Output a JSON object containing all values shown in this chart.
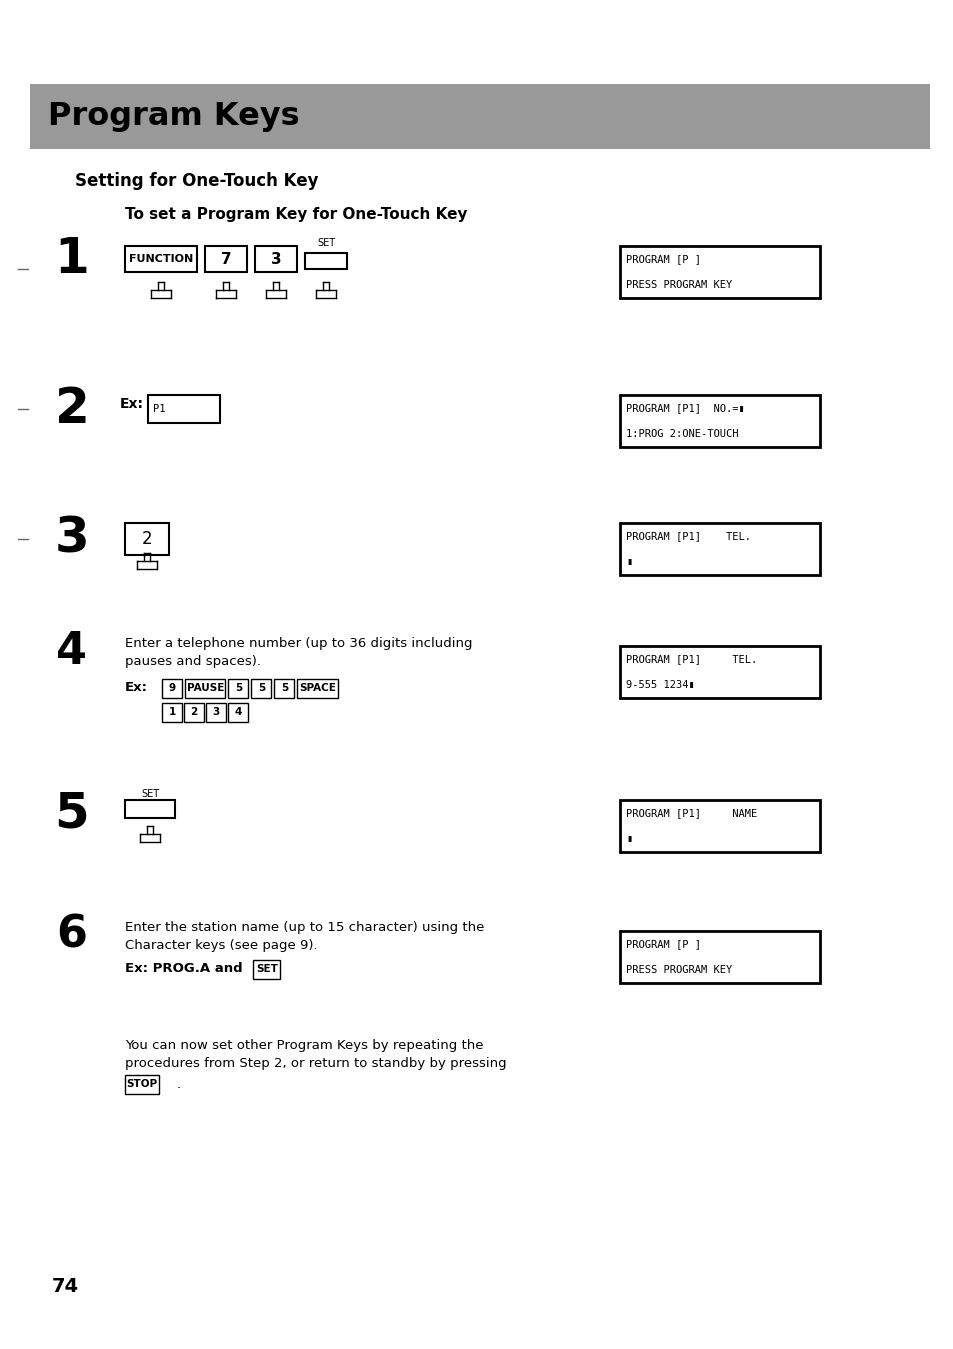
{
  "bg_color": "#ffffff",
  "title": "Program Keys",
  "subtitle": "Setting for One-Touch Key",
  "sub_subtitle": "To set a Program Key for One-Touch Key",
  "page_number": "74",
  "display1": [
    "PROGRAM [P ]",
    "PRESS PROGRAM KEY"
  ],
  "display2": [
    "PROGRAM [P1]  NO.=▮",
    "1:PROG 2:ONE-TOUCH"
  ],
  "display3": [
    "PROGRAM [P1]    TEL.",
    "▮"
  ],
  "display4": [
    "PROGRAM [P1]     TEL.",
    "9-555 1234▮"
  ],
  "display5": [
    "PROGRAM [P1]     NAME",
    "▮"
  ],
  "display6": [
    "PROGRAM [P ]",
    "PRESS PROGRAM KEY"
  ],
  "step4_line1": "Enter a telephone number (up to 36 digits including",
  "step4_line2": "pauses and spaces).",
  "step6_line1": "Enter the station name (up to 15 character) using the",
  "step6_line2": "Character keys (see page 9).",
  "final_line1": "You can now set other Program Keys by repeating the",
  "final_line2": "procedures from Step 2, or return to standby by pressing",
  "header_color": "#aaaaaa",
  "border_color": "#000000"
}
